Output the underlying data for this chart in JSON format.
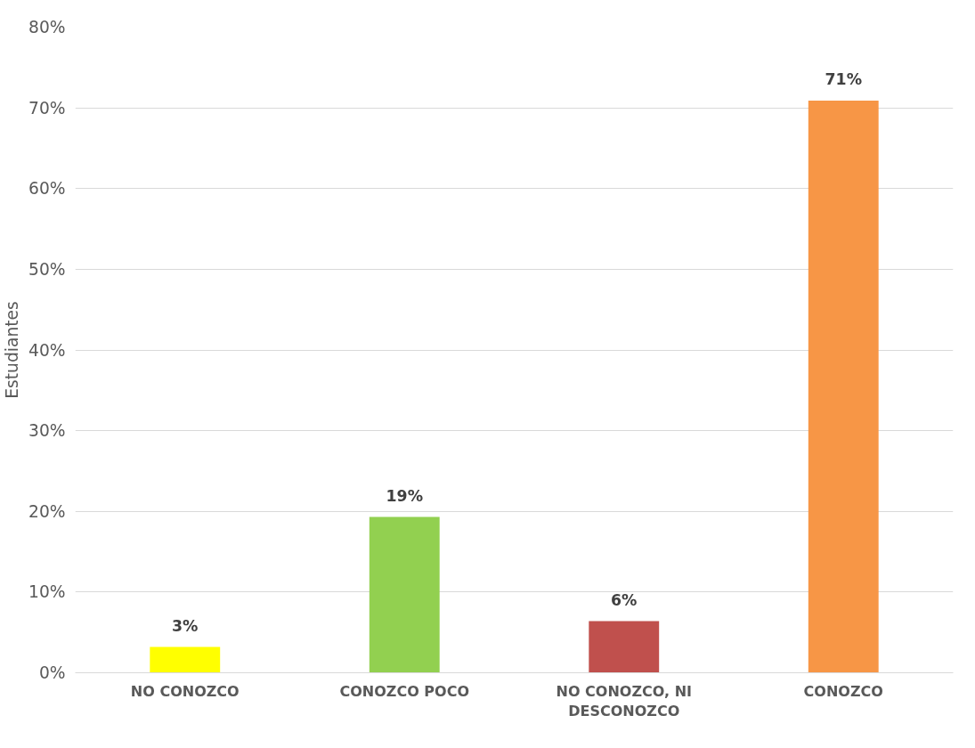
{
  "chart_data": {
    "type": "bar",
    "ylabel": "Estudiantes",
    "categories": [
      "NO CONOZCO",
      "CONOZCO POCO",
      "NO CONOZCO, NI DESCONOZCO",
      "CONOZCO"
    ],
    "values": [
      3.2,
      19.3,
      6.4,
      70.9
    ],
    "value_labels": [
      "3%",
      "19%",
      "6%",
      "71%"
    ],
    "colors": [
      "#ffff00",
      "#92d050",
      "#c0504d",
      "#f79646"
    ],
    "ylim": [
      0,
      80
    ],
    "yticks": [
      {
        "value": 0,
        "label": "0%"
      },
      {
        "value": 10,
        "label": "10%"
      },
      {
        "value": 20,
        "label": "20%"
      },
      {
        "value": 30,
        "label": "30%"
      },
      {
        "value": 40,
        "label": "40%"
      },
      {
        "value": 50,
        "label": "50%"
      },
      {
        "value": 60,
        "label": "60%"
      },
      {
        "value": 70,
        "label": "70%"
      },
      {
        "value": 80,
        "label": "80%"
      }
    ],
    "grid": "y",
    "legend": false
  }
}
